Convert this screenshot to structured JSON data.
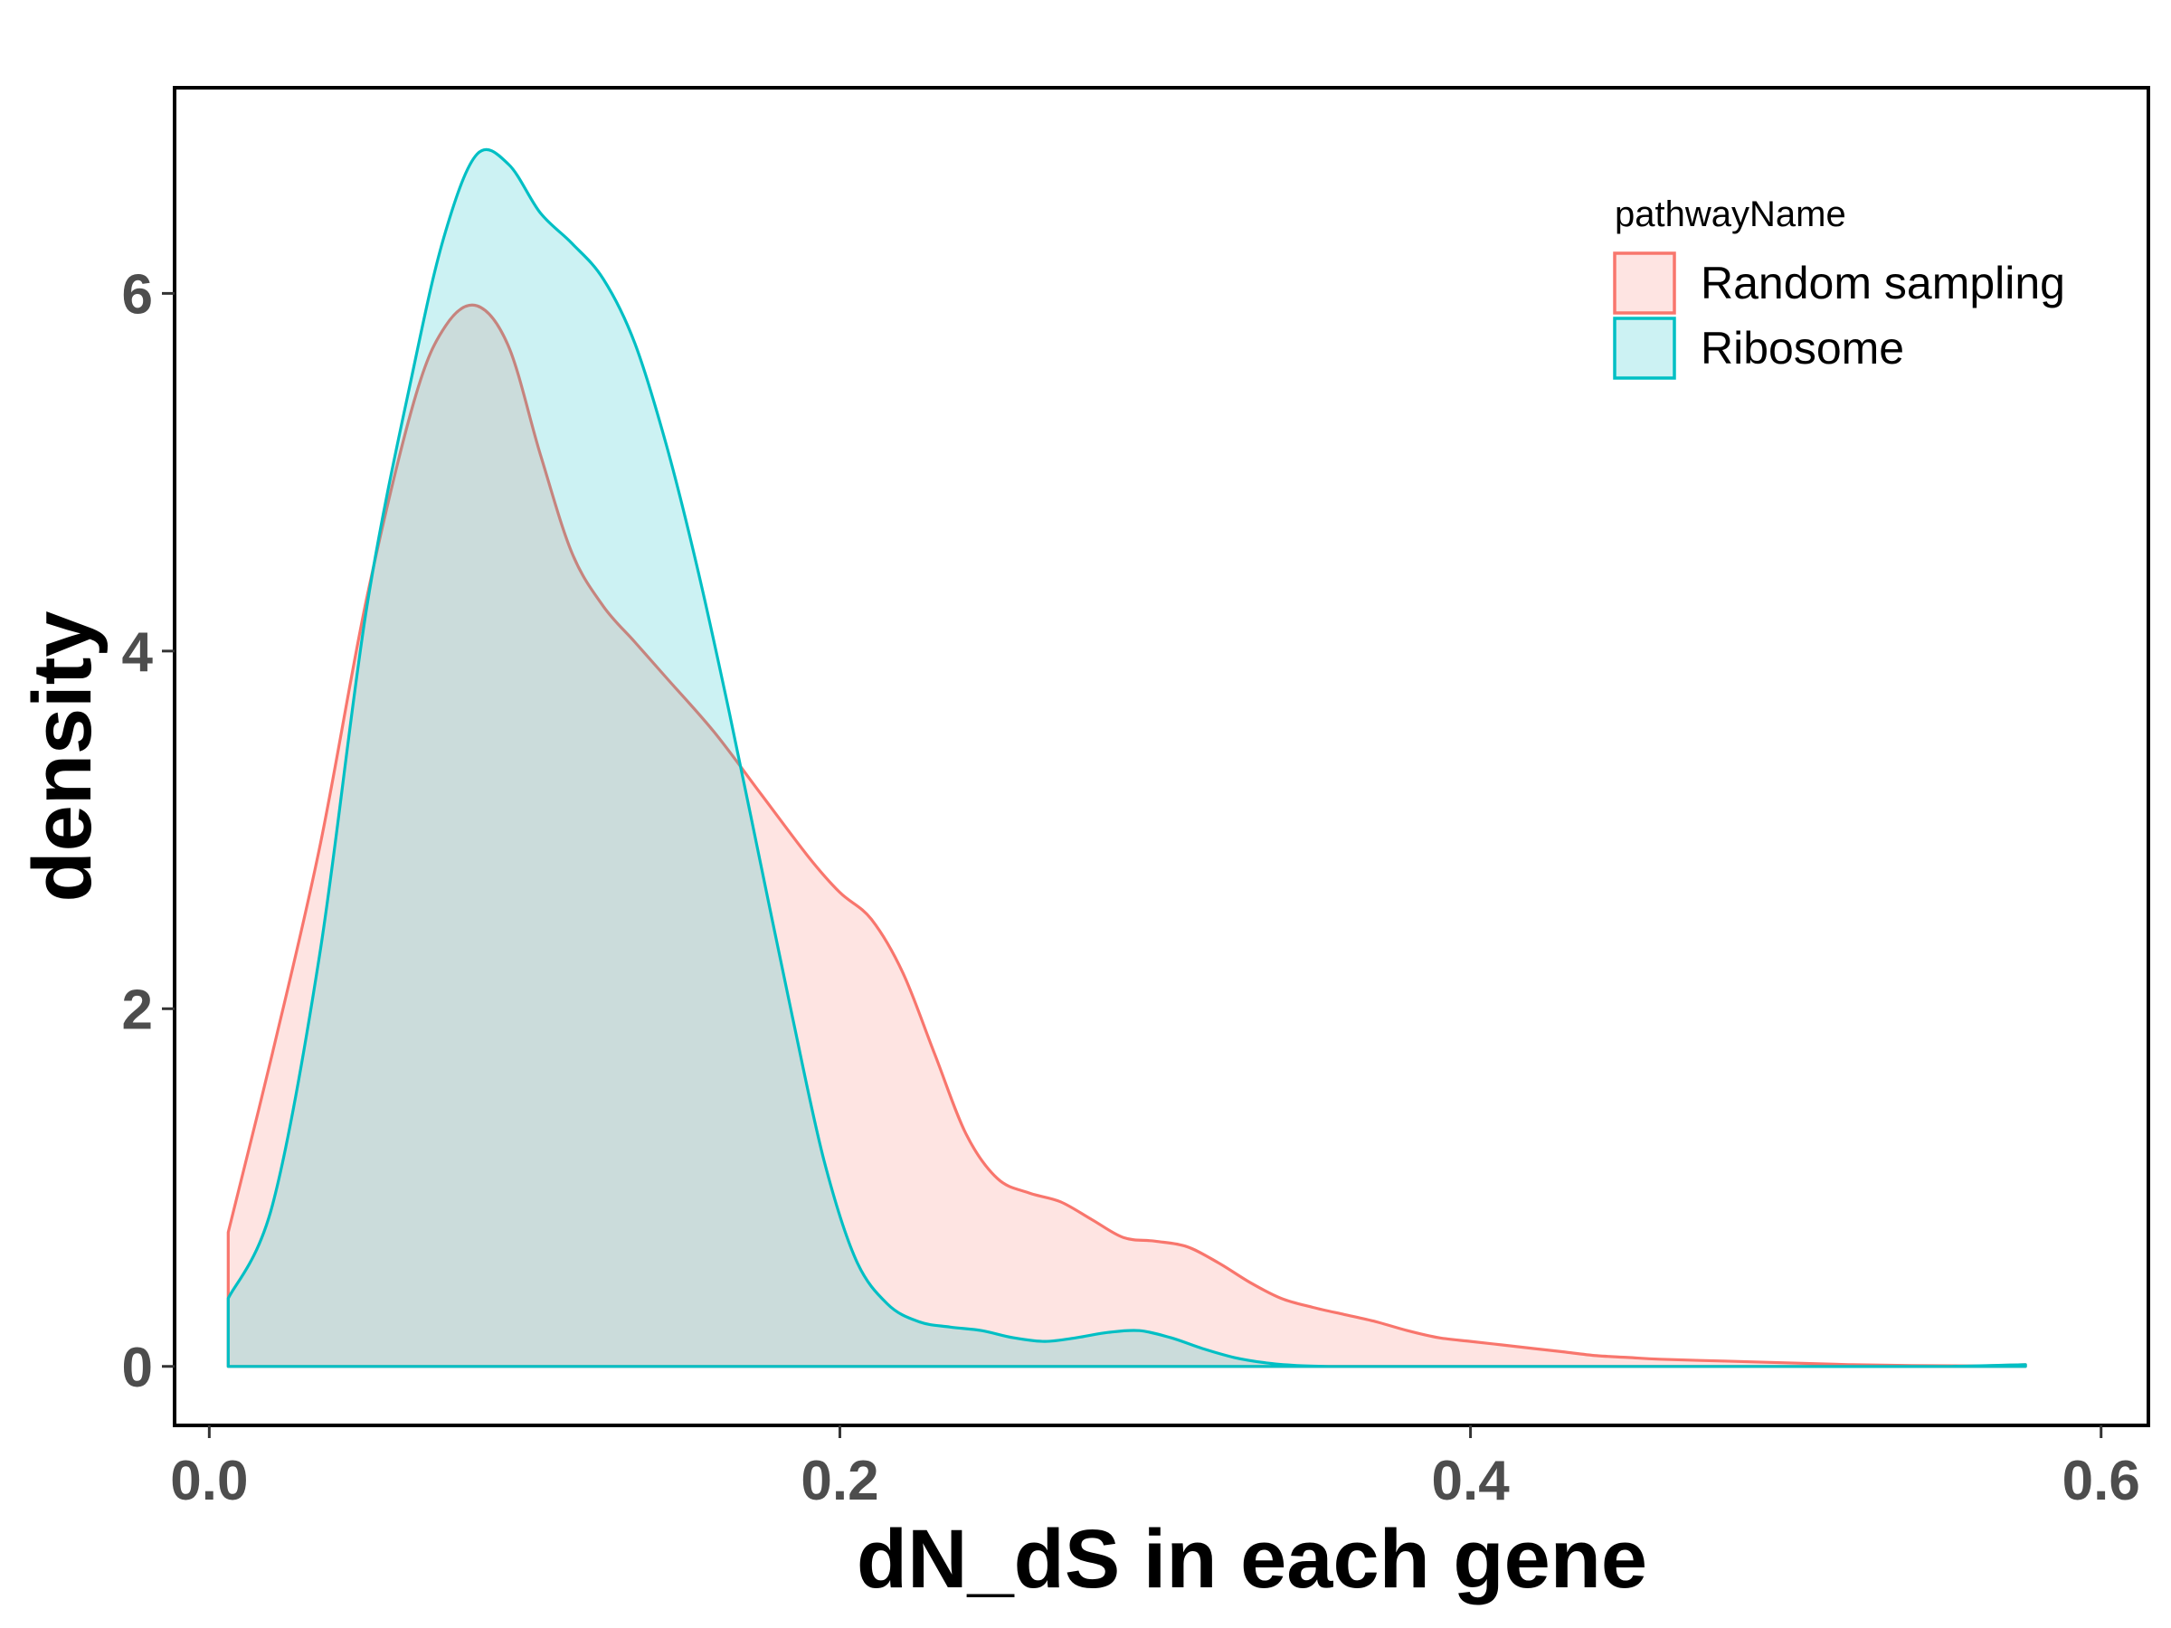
{
  "chart_data": {
    "type": "area",
    "subtype": "density",
    "xlabel": "dN_dS in each gene",
    "ylabel": "density",
    "xlim": [
      -0.011,
      0.615
    ],
    "ylim": [
      -0.33,
      7.15
    ],
    "x_ticks": [
      0.0,
      0.2,
      0.4,
      0.6
    ],
    "x_tick_labels": [
      "0.0",
      "0.2",
      "0.4",
      "0.6"
    ],
    "y_ticks": [
      0,
      2,
      4,
      6
    ],
    "y_tick_labels": [
      "0",
      "2",
      "4",
      "6"
    ],
    "grid": false,
    "legend": {
      "title": "pathwayName",
      "position": "top-right"
    },
    "series": [
      {
        "name": "Random sampling",
        "color": "#F8766D",
        "fill": "#F8766D",
        "fill_opacity": 0.2,
        "x": [
          0.006,
          0.02,
          0.035,
          0.05,
          0.065,
          0.075,
          0.085,
          0.095,
          0.105,
          0.115,
          0.125,
          0.135,
          0.145,
          0.16,
          0.175,
          0.19,
          0.2,
          0.21,
          0.22,
          0.23,
          0.24,
          0.25,
          0.26,
          0.27,
          0.28,
          0.29,
          0.3,
          0.31,
          0.32,
          0.33,
          0.34,
          0.35,
          0.36,
          0.37,
          0.38,
          0.39,
          0.4,
          0.41,
          0.42,
          0.43,
          0.44,
          0.45,
          0.46,
          0.48,
          0.5,
          0.52,
          0.54,
          0.56,
          0.576
        ],
        "y": [
          0.75,
          1.75,
          2.9,
          4.3,
          5.4,
          5.82,
          5.93,
          5.7,
          5.1,
          4.55,
          4.25,
          4.05,
          3.85,
          3.55,
          3.2,
          2.85,
          2.65,
          2.5,
          2.2,
          1.75,
          1.3,
          1.05,
          0.97,
          0.92,
          0.82,
          0.72,
          0.7,
          0.67,
          0.58,
          0.47,
          0.38,
          0.33,
          0.29,
          0.25,
          0.2,
          0.16,
          0.14,
          0.12,
          0.1,
          0.08,
          0.06,
          0.05,
          0.04,
          0.03,
          0.02,
          0.01,
          0.005,
          0.003,
          0.01
        ]
      },
      {
        "name": "Ribosome",
        "color": "#00BFC4",
        "fill": "#00BFC4",
        "fill_opacity": 0.2,
        "x": [
          0.006,
          0.02,
          0.035,
          0.05,
          0.065,
          0.075,
          0.085,
          0.095,
          0.105,
          0.115,
          0.125,
          0.135,
          0.145,
          0.155,
          0.165,
          0.175,
          0.185,
          0.195,
          0.205,
          0.215,
          0.225,
          0.235,
          0.245,
          0.255,
          0.265,
          0.275,
          0.285,
          0.295,
          0.305,
          0.315,
          0.325,
          0.335,
          0.345,
          0.355,
          0.365,
          0.375,
          0.385,
          0.4,
          0.42,
          0.45,
          0.5,
          0.55,
          0.576
        ],
        "y": [
          0.38,
          0.9,
          2.3,
          4.25,
          5.6,
          6.35,
          6.78,
          6.72,
          6.45,
          6.28,
          6.08,
          5.72,
          5.15,
          4.45,
          3.65,
          2.8,
          1.95,
          1.15,
          0.6,
          0.35,
          0.25,
          0.22,
          0.2,
          0.16,
          0.14,
          0.16,
          0.19,
          0.2,
          0.16,
          0.1,
          0.05,
          0.02,
          0.005,
          0.0,
          0.0,
          0.0,
          0.0,
          0.0,
          0.0,
          0.0,
          0.0,
          0.0,
          0.01
        ]
      }
    ]
  }
}
